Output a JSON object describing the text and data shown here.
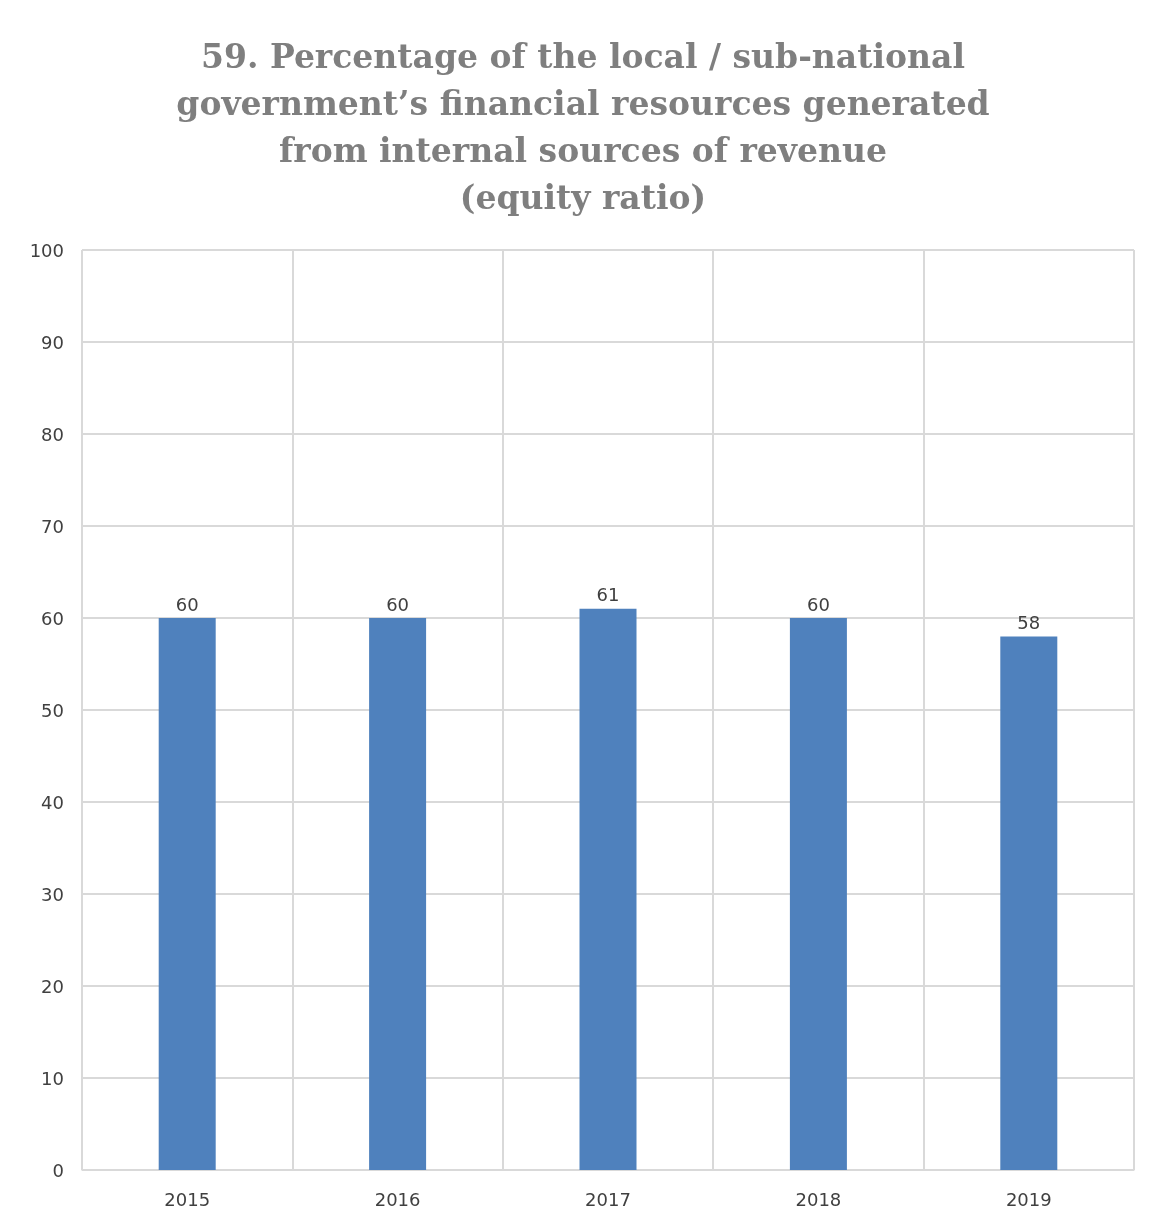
{
  "chart_data": {
    "type": "bar",
    "title": "59. Percentage of the local / sub-national\ngovernment’s financial resources generated\nfrom internal sources of revenue\n(equity ratio)",
    "categories": [
      "2015",
      "2016",
      "2017",
      "2018",
      "2019"
    ],
    "values": [
      60,
      60,
      61,
      60,
      58
    ],
    "color": "#4f81bd",
    "ylim": [
      0,
      100
    ],
    "yticks": [
      0,
      10,
      20,
      30,
      40,
      50,
      60,
      70,
      80,
      90,
      100
    ],
    "grid": true,
    "data_labels": true
  }
}
